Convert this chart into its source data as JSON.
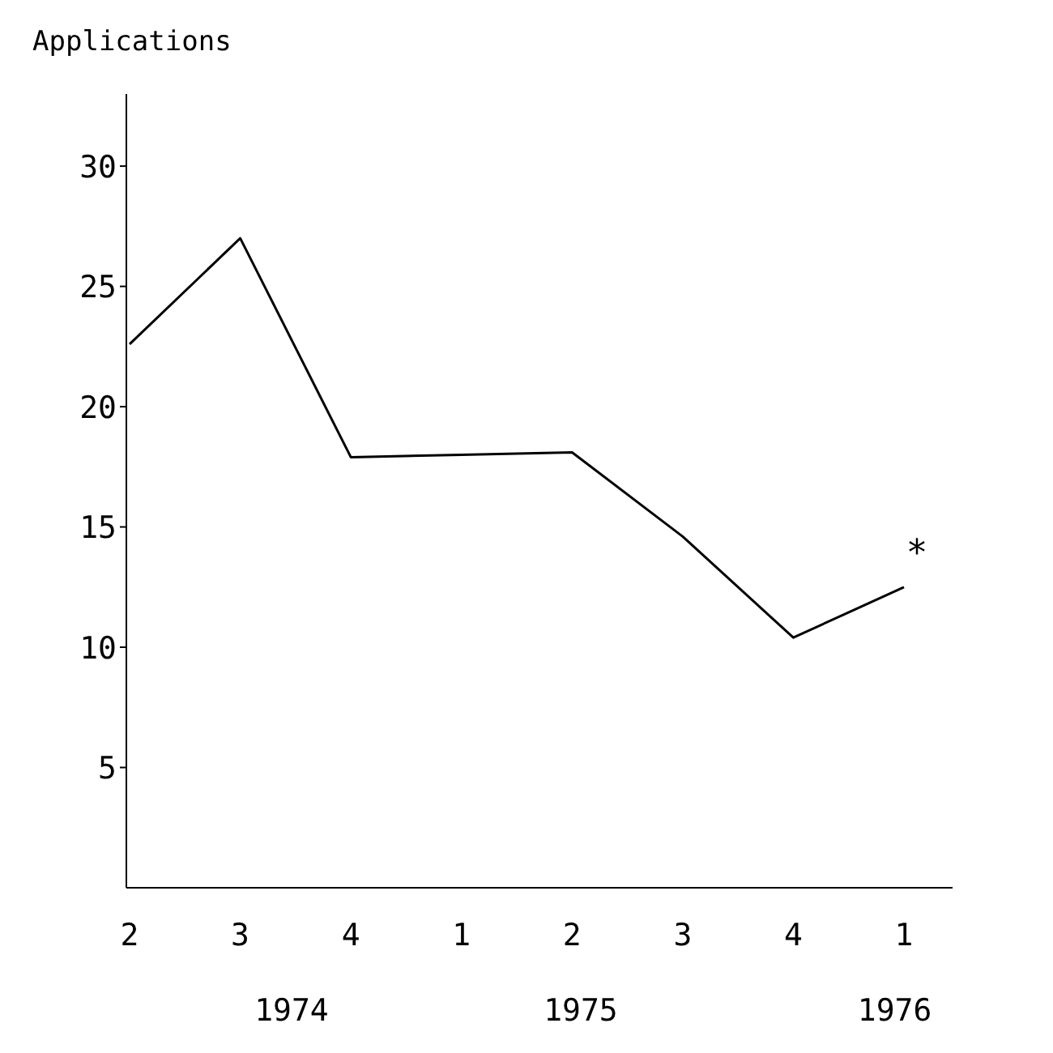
{
  "chart_data": {
    "type": "line",
    "ylabel": "Applications",
    "categories": [
      "2",
      "3",
      "4",
      "1",
      "2",
      "3",
      "4",
      "1"
    ],
    "series": [
      {
        "color": "#000000",
        "values": [
          22.6,
          27.0,
          17.9,
          18.0,
          18.1,
          14.6,
          10.4,
          12.5
        ]
      }
    ],
    "ylim": [
      0,
      33
    ],
    "yticks": [
      5,
      10,
      15,
      20,
      25,
      30
    ],
    "annotations": [
      "*",
      "1974",
      "1975",
      "1976"
    ],
    "grid": false,
    "legend": false,
    "marker": "none",
    "line_style": "solid"
  }
}
